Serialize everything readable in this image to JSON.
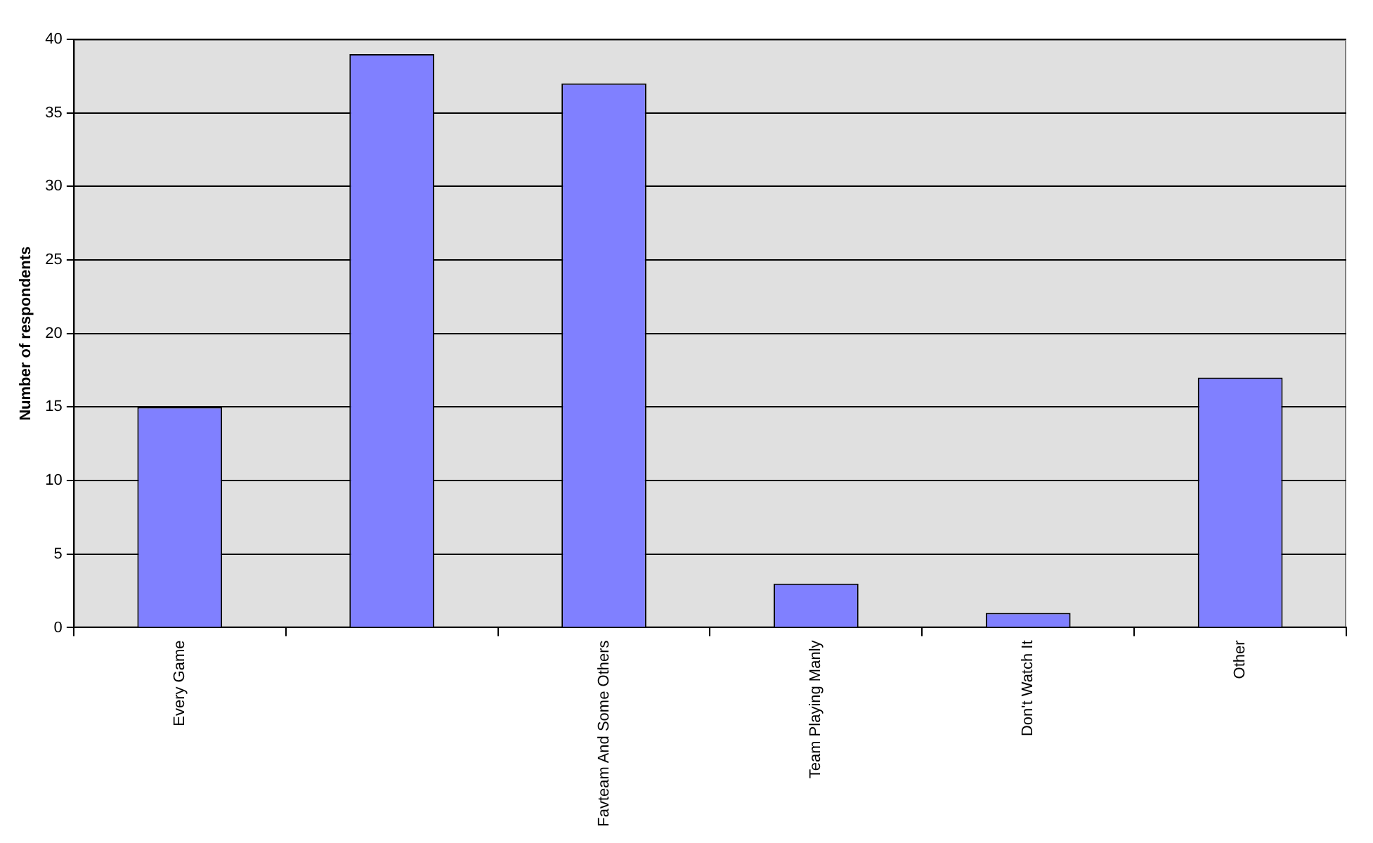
{
  "chart_data": {
    "type": "bar",
    "ylabel": "Number of respondents",
    "categories": [
      "Every Game",
      null,
      "Favteam And Some Others",
      "Team Playing Manly",
      "Don't Watch It",
      "Other"
    ],
    "values": [
      15,
      39,
      37,
      3,
      1,
      17
    ],
    "color": "#8080ff",
    "ylim": [
      0,
      40
    ],
    "yticks": [
      0,
      5,
      10,
      15,
      20,
      25,
      30,
      35,
      40
    ],
    "grid": "y",
    "legend": false
  }
}
